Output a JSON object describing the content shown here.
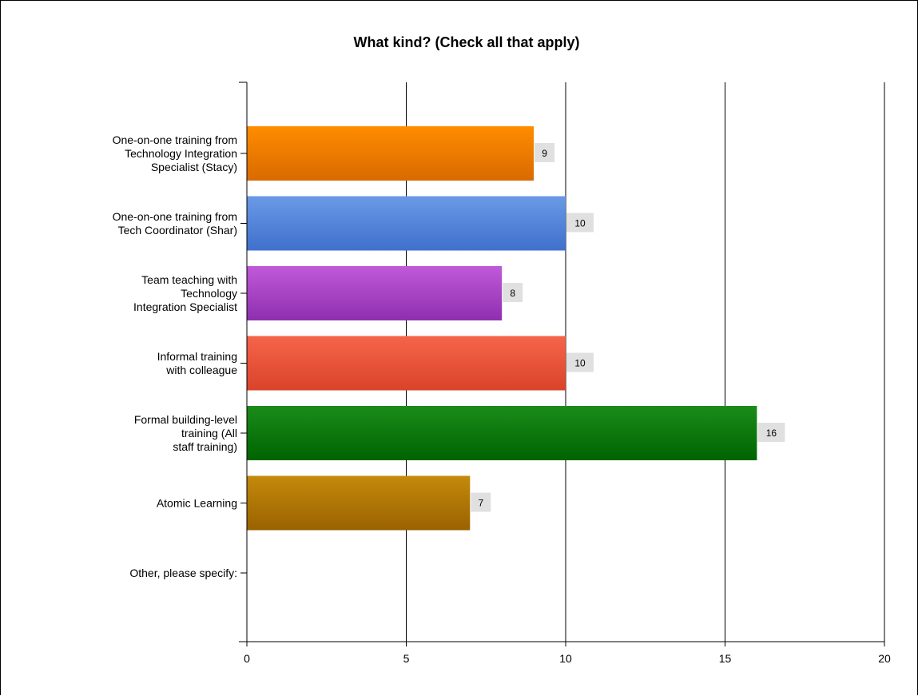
{
  "chart_data": {
    "type": "bar",
    "orientation": "horizontal",
    "title": "What kind? (Check all that apply)",
    "xlabel": "",
    "ylabel": "",
    "xlim": [
      0,
      20
    ],
    "x_ticks": [
      0,
      5,
      10,
      15,
      20
    ],
    "grid": true,
    "legend": "none",
    "categories": [
      [
        "One-on-one training from",
        "Technology Integration",
        "Specialist (Stacy)"
      ],
      [
        "One-on-one training from",
        "Tech Coordinator (Shar)"
      ],
      [
        "Team teaching with",
        "Technology",
        "Integration Specialist"
      ],
      [
        "Informal training",
        "with colleague"
      ],
      [
        "Formal building-level",
        "training (All",
        "staff training)"
      ],
      [
        "Atomic Learning"
      ],
      [
        "Other, please specify:"
      ]
    ],
    "values": [
      9,
      10,
      8,
      10,
      16,
      7,
      null
    ],
    "data_labels": [
      "9",
      "10",
      "8",
      "10",
      "16",
      "7",
      ""
    ],
    "colors": [
      [
        "#ff8c00",
        "#d96a00"
      ],
      [
        "#6a9ae6",
        "#3f70cc"
      ],
      [
        "#c05ad8",
        "#8e2fb0"
      ],
      [
        "#f5654a",
        "#d9432a"
      ],
      [
        "#1a8c1a",
        "#006400"
      ],
      [
        "#c48a0c",
        "#9a6200"
      ],
      [
        "#888888",
        "#666666"
      ]
    ],
    "label_bg": "#e0e0e0"
  }
}
